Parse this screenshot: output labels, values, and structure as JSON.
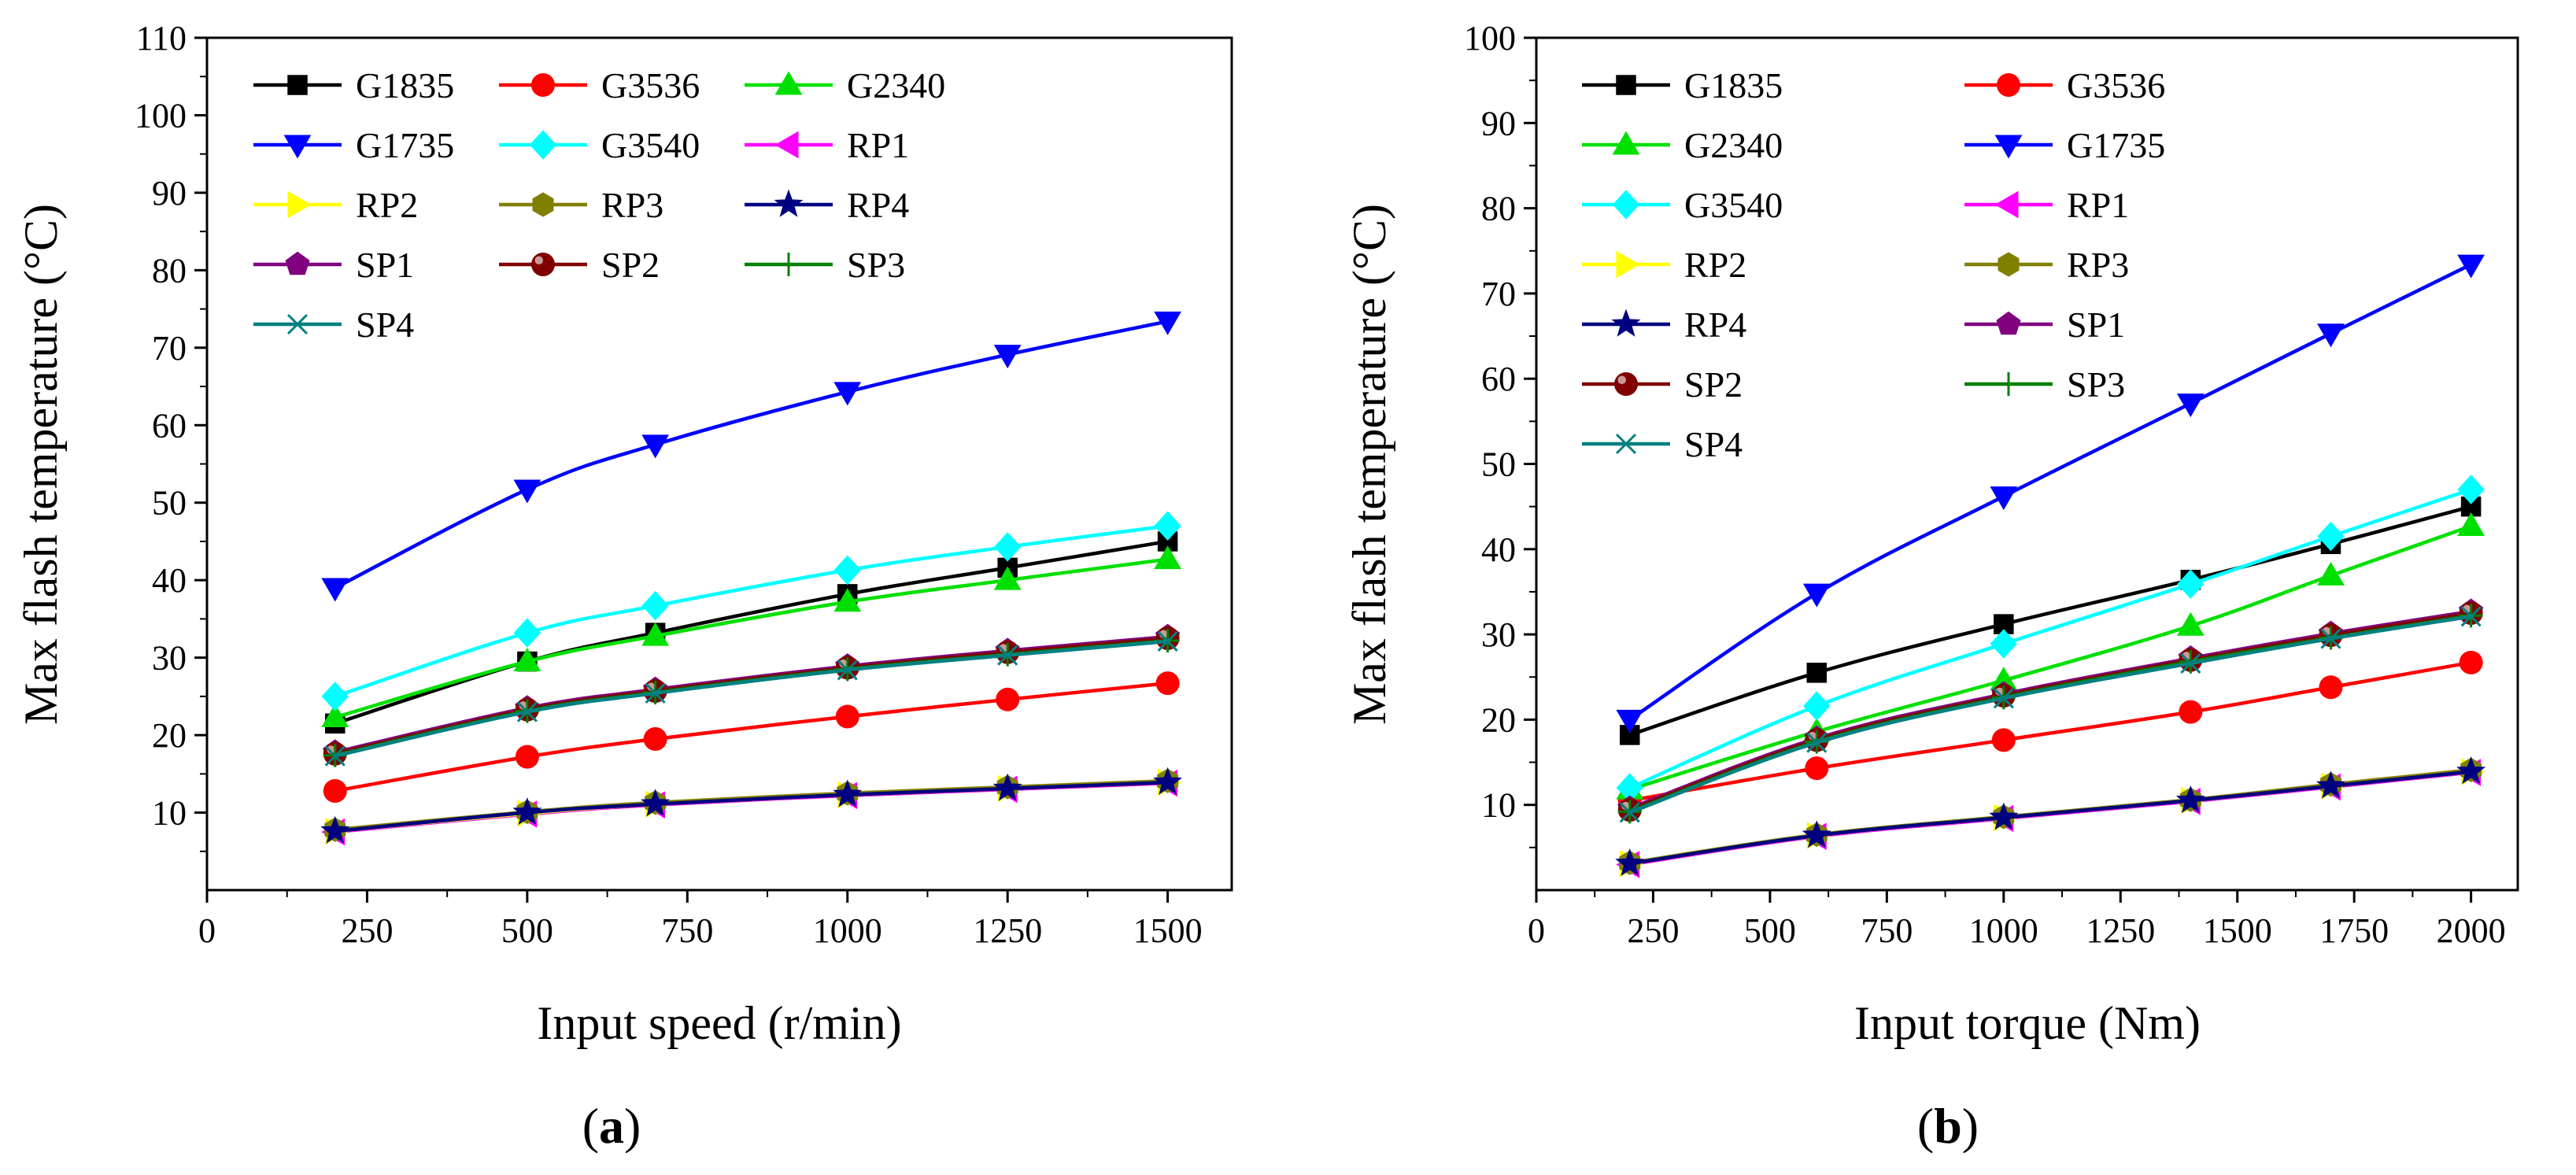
{
  "chart_data": [
    {
      "type": "line",
      "panel_label": "(a)",
      "panel_letter": "a",
      "xlabel": "Input speed (r/min)",
      "ylabel": "Max flash temperature (°C)",
      "xlim": [
        0,
        1600
      ],
      "ylim": [
        0,
        110
      ],
      "xticks": [
        0,
        250,
        500,
        750,
        1000,
        1250,
        1500
      ],
      "yticks": [
        10,
        20,
        30,
        40,
        50,
        60,
        70,
        80,
        90,
        100,
        110
      ],
      "x": [
        200,
        500,
        700,
        1000,
        1250,
        1500
      ],
      "legend_position": "top-left",
      "legend_columns": 3,
      "series": [
        {
          "name": "G1835",
          "color": "#000000",
          "marker": "square",
          "values": [
            21.5,
            29.5,
            33.2,
            38.2,
            41.6,
            45.0
          ]
        },
        {
          "name": "G3536",
          "color": "#ff0000",
          "marker": "circle",
          "values": [
            12.8,
            17.2,
            19.5,
            22.4,
            24.6,
            26.7
          ]
        },
        {
          "name": "G2340",
          "color": "#00e000",
          "marker": "triangle-up",
          "values": [
            22.3,
            29.5,
            32.8,
            37.2,
            40.0,
            42.7
          ]
        },
        {
          "name": "G1735",
          "color": "#0000ff",
          "marker": "triangle-down",
          "values": [
            39.0,
            51.7,
            57.5,
            64.3,
            69.1,
            73.4
          ]
        },
        {
          "name": "G3540",
          "color": "#00ffff",
          "marker": "diamond",
          "values": [
            25.0,
            33.2,
            36.7,
            41.3,
            44.3,
            47.0
          ]
        },
        {
          "name": "RP1",
          "color": "#ff00ff",
          "marker": "triangle-left",
          "values": [
            7.5,
            9.8,
            11.0,
            12.2,
            13.0,
            13.8
          ]
        },
        {
          "name": "RP2",
          "color": "#ffff00",
          "marker": "triangle-right",
          "values": [
            7.6,
            9.9,
            11.1,
            12.3,
            13.1,
            13.9
          ]
        },
        {
          "name": "RP3",
          "color": "#808000",
          "marker": "hexagon",
          "values": [
            7.8,
            10.1,
            11.3,
            12.5,
            13.3,
            14.1
          ]
        },
        {
          "name": "RP4",
          "color": "#000080",
          "marker": "star",
          "values": [
            7.6,
            10.0,
            11.1,
            12.3,
            13.1,
            13.9
          ]
        },
        {
          "name": "SP1",
          "color": "#800080",
          "marker": "pentagon",
          "values": [
            17.8,
            23.5,
            25.9,
            28.9,
            30.9,
            32.7
          ]
        },
        {
          "name": "SP2",
          "color": "#800000",
          "marker": "ball",
          "values": [
            17.6,
            23.3,
            25.7,
            28.7,
            30.7,
            32.5
          ]
        },
        {
          "name": "SP3",
          "color": "#008000",
          "marker": "plus",
          "values": [
            17.4,
            23.1,
            25.5,
            28.5,
            30.4,
            32.2
          ]
        },
        {
          "name": "SP4",
          "color": "#008080",
          "marker": "cross",
          "values": [
            17.3,
            23.0,
            25.4,
            28.4,
            30.3,
            32.1
          ]
        }
      ]
    },
    {
      "type": "line",
      "panel_label": "(b)",
      "panel_letter": "b",
      "xlabel": "Input torque (Nm)",
      "ylabel": "Max flash temperature (°C)",
      "xlim": [
        0,
        2100
      ],
      "ylim": [
        0,
        100
      ],
      "xticks": [
        0,
        250,
        500,
        750,
        1000,
        1250,
        1500,
        1750,
        2000
      ],
      "yticks": [
        10,
        20,
        30,
        40,
        50,
        60,
        70,
        80,
        90,
        100
      ],
      "x": [
        200,
        600,
        1000,
        1400,
        1700,
        2000
      ],
      "legend_position": "top-left",
      "legend_columns": 2,
      "series": [
        {
          "name": "G1835",
          "color": "#000000",
          "marker": "square",
          "values": [
            18.2,
            25.5,
            31.2,
            36.4,
            40.6,
            45.0
          ]
        },
        {
          "name": "G3536",
          "color": "#ff0000",
          "marker": "circle",
          "values": [
            10.5,
            14.3,
            17.6,
            20.9,
            23.8,
            26.7
          ]
        },
        {
          "name": "G2340",
          "color": "#00e000",
          "marker": "triangle-up",
          "values": [
            11.8,
            18.6,
            24.6,
            31.0,
            36.9,
            42.7
          ]
        },
        {
          "name": "G1735",
          "color": "#0000ff",
          "marker": "triangle-down",
          "values": [
            20.0,
            34.8,
            46.2,
            57.1,
            65.3,
            73.4
          ]
        },
        {
          "name": "G3540",
          "color": "#00ffff",
          "marker": "diamond",
          "values": [
            12.0,
            21.6,
            28.9,
            35.9,
            41.5,
            47.0
          ]
        },
        {
          "name": "RP1",
          "color": "#ff00ff",
          "marker": "triangle-left",
          "values": [
            3.0,
            6.3,
            8.4,
            10.4,
            12.1,
            13.8
          ]
        },
        {
          "name": "RP2",
          "color": "#ffff00",
          "marker": "triangle-right",
          "values": [
            3.1,
            6.4,
            8.5,
            10.5,
            12.2,
            13.9
          ]
        },
        {
          "name": "RP3",
          "color": "#808000",
          "marker": "hexagon",
          "values": [
            3.2,
            6.5,
            8.6,
            10.6,
            12.4,
            14.1
          ]
        },
        {
          "name": "RP4",
          "color": "#000080",
          "marker": "star",
          "values": [
            3.1,
            6.4,
            8.5,
            10.5,
            12.2,
            13.9
          ]
        },
        {
          "name": "SP1",
          "color": "#800080",
          "marker": "pentagon",
          "values": [
            9.6,
            17.8,
            23.0,
            27.2,
            30.1,
            32.7
          ]
        },
        {
          "name": "SP2",
          "color": "#800000",
          "marker": "ball",
          "values": [
            9.4,
            17.6,
            22.8,
            27.0,
            29.9,
            32.5
          ]
        },
        {
          "name": "SP3",
          "color": "#008000",
          "marker": "plus",
          "values": [
            9.2,
            17.4,
            22.6,
            26.8,
            29.6,
            32.2
          ]
        },
        {
          "name": "SP4",
          "color": "#008080",
          "marker": "cross",
          "values": [
            9.1,
            17.3,
            22.5,
            26.6,
            29.5,
            32.1
          ]
        }
      ]
    }
  ]
}
